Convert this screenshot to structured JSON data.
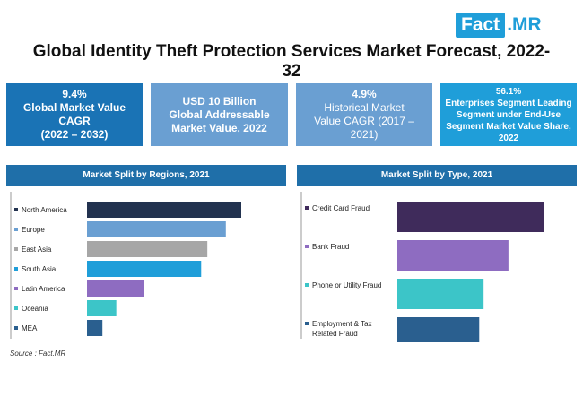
{
  "logo": {
    "part1": "Fact",
    "part2": ".MR"
  },
  "title": "Global Identity Theft Protection Services Market Forecast, 2022-32",
  "kpis": [
    {
      "value": "9.4%",
      "lines": [
        "Global Market Value",
        "CAGR",
        "(2022 – 2032)"
      ],
      "color": "#1a73b5"
    },
    {
      "value": "USD 10 Billion",
      "lines": [
        "Global Addressable",
        "Market Value, 2022"
      ],
      "color": "#6a9fd2"
    },
    {
      "value": "4.9%",
      "lines": [
        "Historical Market",
        "Value CAGR (2017 –",
        "2021)"
      ],
      "color": "#6a9fd2"
    },
    {
      "value": "56.1%",
      "lines": [
        "Enterprises Segment Leading",
        "Segment under End-Use",
        "Segment Market Value Share,",
        "2022"
      ],
      "color": "#1f9ed9"
    }
  ],
  "panels": {
    "regions_title": "Market Split by Regions, 2021",
    "type_title": "Market Split by Type, 2021"
  },
  "source": "Source : Fact.MR",
  "chart_data": [
    {
      "type": "bar",
      "orientation": "horizontal",
      "title": "Market Split by Regions, 2021",
      "categories": [
        "North America",
        "Europe",
        "East Asia",
        "South Asia",
        "Latin America",
        "Oceania",
        "MEA"
      ],
      "values": [
        100,
        90,
        78,
        74,
        37,
        19,
        10
      ],
      "colors": [
        "#22324f",
        "#6a9fd2",
        "#a6a6a6",
        "#1f9ed9",
        "#8e6cc1",
        "#3cc5c8",
        "#2a5f8f"
      ],
      "legend": "left"
    },
    {
      "type": "bar",
      "orientation": "horizontal",
      "title": "Market Split by Type, 2021",
      "categories": [
        "Credit Card Fraud",
        "Bank Fraud",
        "Phone or Utility Fraud",
        "Employment & Tax Related Fraud"
      ],
      "values": [
        100,
        76,
        59,
        56
      ],
      "colors": [
        "#3f2b5b",
        "#8e6cc1",
        "#3cc5c8",
        "#2a5f8f"
      ],
      "legend": "left"
    }
  ]
}
